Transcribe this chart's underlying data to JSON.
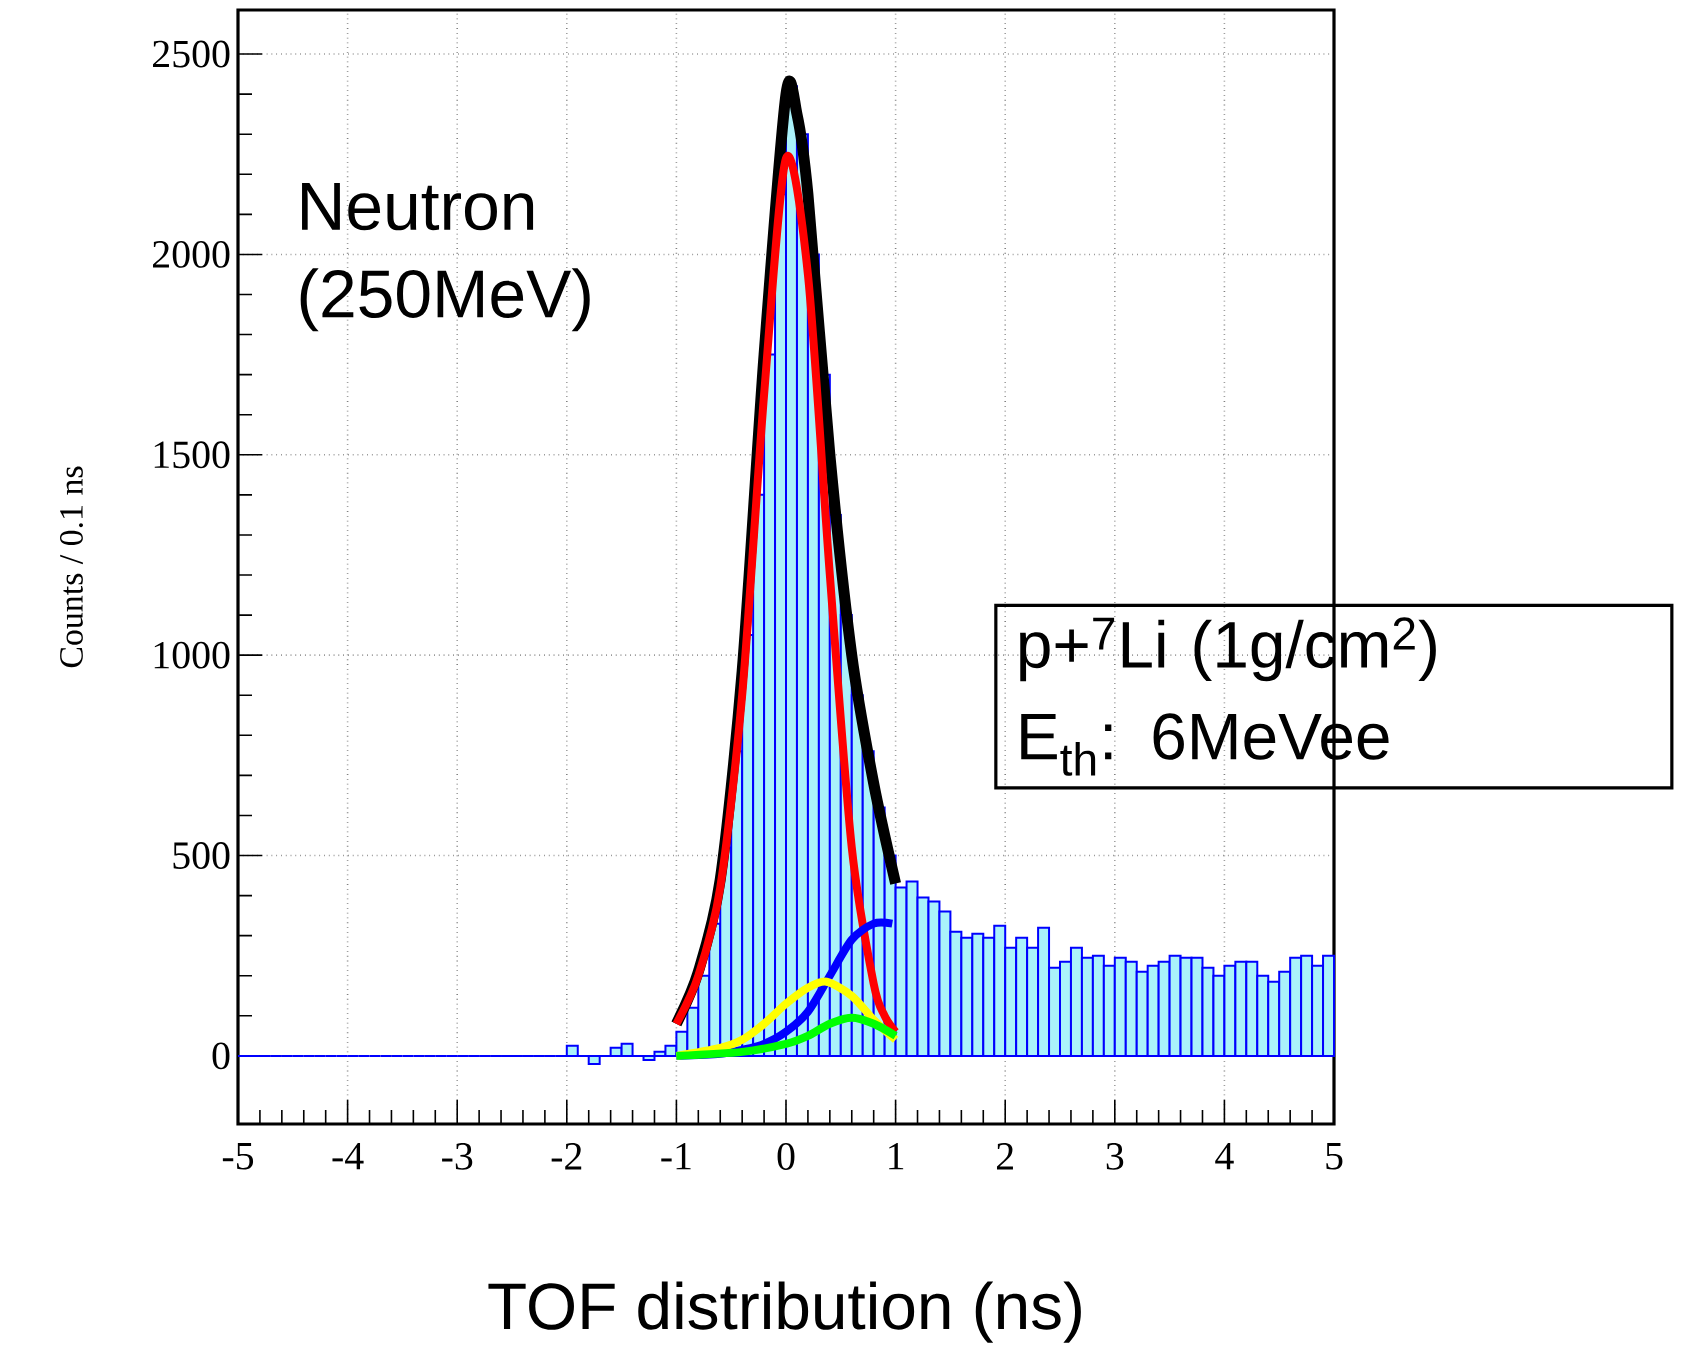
{
  "chart_data": {
    "type": "histogram",
    "xlabel": "TOF distribution (ns)",
    "ylabel": "Counts / 0.1 ns",
    "bins": [
      -5,
      -4.9,
      -4.8,
      -4.7,
      -4.6,
      -4.5,
      -4.4,
      -4.3,
      -4.2,
      -4.1,
      -4,
      -3.9,
      -3.8,
      -3.7,
      -3.6,
      -3.5,
      -3.4,
      -3.3,
      -3.2,
      -3.1,
      -3,
      -2.9,
      -2.8,
      -2.7,
      -2.6,
      -2.5,
      -2.4,
      -2.3,
      -2.2,
      -2.1,
      -2,
      -1.9,
      -1.8,
      -1.7,
      -1.6,
      -1.5,
      -1.4,
      -1.3,
      -1.2,
      -1.1,
      -1,
      -0.9,
      -0.8,
      -0.7,
      -0.6,
      -0.5,
      -0.4,
      -0.3,
      -0.2,
      -0.1,
      0,
      0.1,
      0.2,
      0.3,
      0.4,
      0.5,
      0.6,
      0.7,
      0.8,
      0.9,
      1,
      1.1,
      1.2,
      1.3,
      1.4,
      1.5,
      1.6,
      1.7,
      1.8,
      1.9,
      2,
      2.1,
      2.2,
      2.3,
      2.4,
      2.5,
      2.6,
      2.7,
      2.8,
      2.9,
      3,
      3.1,
      3.2,
      3.3,
      3.4,
      3.5,
      3.6,
      3.7,
      3.8,
      3.9,
      4,
      4.1,
      4.2,
      4.3,
      4.4,
      4.5,
      4.6,
      4.7,
      4.8,
      4.9,
      5
    ],
    "values": [
      0,
      0,
      0,
      0,
      0,
      0,
      0,
      0,
      0,
      0,
      0,
      0,
      0,
      0,
      0,
      0,
      0,
      0,
      0,
      0,
      0,
      0,
      0,
      0,
      0,
      0,
      0,
      0,
      0,
      0,
      25,
      0,
      -20,
      0,
      20,
      30,
      0,
      -10,
      10,
      25,
      60,
      120,
      200,
      330,
      520,
      760,
      1050,
      1400,
      1750,
      2150,
      2420,
      2300,
      2000,
      1700,
      1350,
      1100,
      900,
      760,
      620,
      500,
      420,
      435,
      395,
      385,
      360,
      310,
      295,
      305,
      295,
      325,
      270,
      295,
      270,
      320,
      220,
      235,
      270,
      245,
      250,
      225,
      245,
      235,
      210,
      225,
      235,
      250,
      245,
      245,
      220,
      200,
      225,
      235,
      235,
      200,
      185,
      210,
      245,
      250,
      225,
      250
    ],
    "color": "#0000ff",
    "series": [
      {
        "type": "line",
        "color": "#000000",
        "x": [
          -1,
          -0.8,
          -0.6,
          -0.4,
          -0.2,
          0,
          0.1,
          0.2,
          0.4,
          0.6,
          0.8,
          1
        ],
        "values": [
          80,
          210,
          440,
          960,
          1750,
          2400,
          2350,
          2150,
          1500,
          1000,
          680,
          430
        ]
      },
      {
        "type": "line",
        "color": "#ff0000",
        "x": [
          -1,
          -0.8,
          -0.6,
          -0.4,
          -0.2,
          0,
          0.2,
          0.4,
          0.6,
          0.8,
          0.9,
          1
        ],
        "values": [
          80,
          200,
          420,
          900,
          1650,
          2240,
          1950,
          1200,
          520,
          180,
          100,
          60
        ]
      },
      {
        "type": "line",
        "color": "#0000ff",
        "x": [
          -1,
          -0.6,
          -0.4,
          -0.2,
          0,
          0.2,
          0.4,
          0.6,
          0.8,
          0.97
        ],
        "values": [
          0,
          5,
          15,
          30,
          60,
          110,
          200,
          290,
          330,
          330
        ]
      },
      {
        "type": "line",
        "color": "#ffff00",
        "x": [
          -1,
          -0.6,
          -0.4,
          -0.2,
          0,
          0.2,
          0.37,
          0.6,
          0.8,
          1
        ],
        "values": [
          0,
          20,
          40,
          80,
          130,
          170,
          185,
          150,
          90,
          40
        ]
      },
      {
        "type": "line",
        "color": "#00ff00",
        "x": [
          -1,
          -0.4,
          0,
          0.2,
          0.4,
          0.6,
          0.8,
          1
        ],
        "values": [
          0,
          10,
          30,
          50,
          80,
          95,
          80,
          50
        ]
      }
    ],
    "xlim": [
      -5,
      5
    ],
    "xticks": [
      -5,
      -4,
      -3,
      -2,
      -1,
      0,
      1,
      2,
      3,
      4,
      5
    ],
    "ylim": [
      -170,
      2610
    ],
    "yticks": [
      0,
      500,
      1000,
      1500,
      2000,
      2500
    ],
    "grid": true,
    "annotations": [
      "Neutron",
      "(250MeV)",
      "p+$^{7}$Li (1g/cm$^{2}$)",
      "E$_{th}$: 6MeVee"
    ]
  }
}
